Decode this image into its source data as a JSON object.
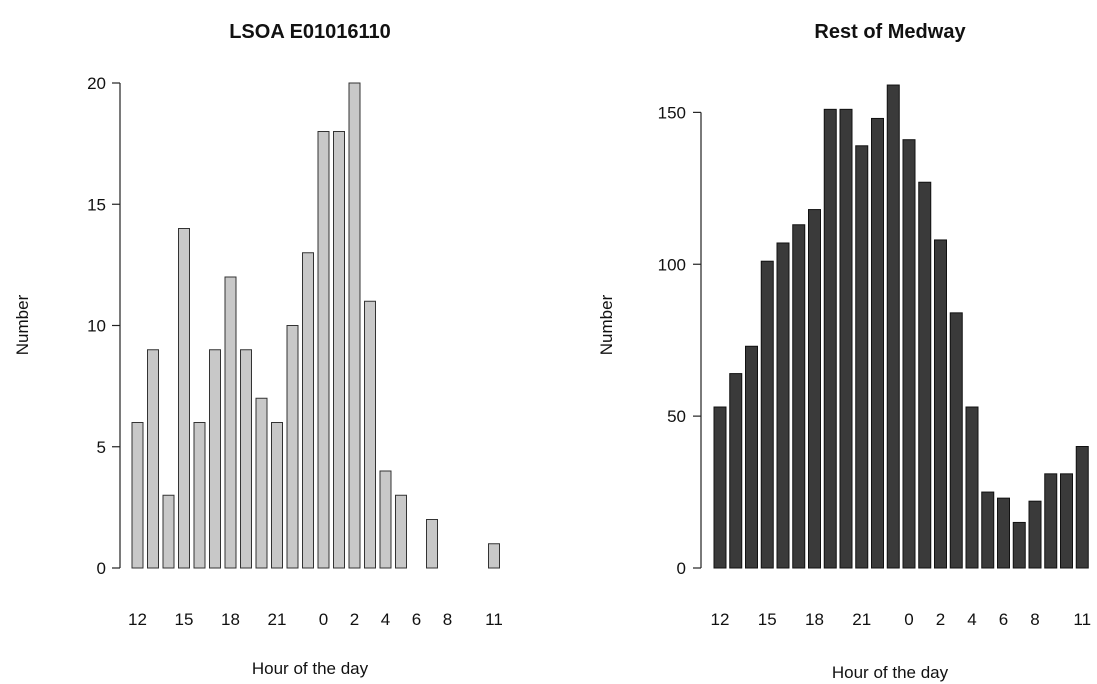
{
  "chart_data": [
    {
      "type": "bar",
      "title": "LSOA E01016110",
      "xlabel": "Hour of the day",
      "ylabel": "Number",
      "ylim": [
        0,
        20
      ],
      "yticks": [
        0,
        5,
        10,
        15,
        20
      ],
      "categories": [
        "12",
        "13",
        "14",
        "15",
        "16",
        "17",
        "18",
        "19",
        "20",
        "21",
        "22",
        "23",
        "0",
        "1",
        "2",
        "3",
        "4",
        "5",
        "6",
        "7",
        "8",
        "9",
        "10",
        "11"
      ],
      "values": [
        6,
        9,
        3,
        14,
        6,
        9,
        12,
        9,
        7,
        6,
        10,
        13,
        18,
        18,
        20,
        11,
        4,
        3,
        0,
        2,
        0,
        0,
        0,
        1
      ],
      "shown_tick_labels": [
        "12",
        "15",
        "18",
        "21",
        "0",
        "2",
        "4",
        "6",
        "8",
        "11"
      ],
      "bar_color": "#c8c8c8",
      "grid": false
    },
    {
      "type": "bar",
      "title": "Rest of Medway",
      "xlabel": "Hour of the day",
      "ylabel": "Number",
      "ylim": [
        0,
        160
      ],
      "yticks": [
        0,
        50,
        100,
        150
      ],
      "categories": [
        "12",
        "13",
        "14",
        "15",
        "16",
        "17",
        "18",
        "19",
        "20",
        "21",
        "22",
        "23",
        "0",
        "1",
        "2",
        "3",
        "4",
        "5",
        "6",
        "7",
        "8",
        "9",
        "10",
        "11"
      ],
      "values": [
        53,
        64,
        73,
        101,
        107,
        113,
        118,
        151,
        151,
        139,
        148,
        159,
        141,
        127,
        108,
        84,
        53,
        25,
        23,
        15,
        22,
        31,
        31,
        40
      ],
      "shown_tick_labels": [
        "12",
        "15",
        "18",
        "21",
        "0",
        "2",
        "4",
        "6",
        "8",
        "11"
      ],
      "bar_color": "#3a3a3a",
      "grid": false
    }
  ]
}
